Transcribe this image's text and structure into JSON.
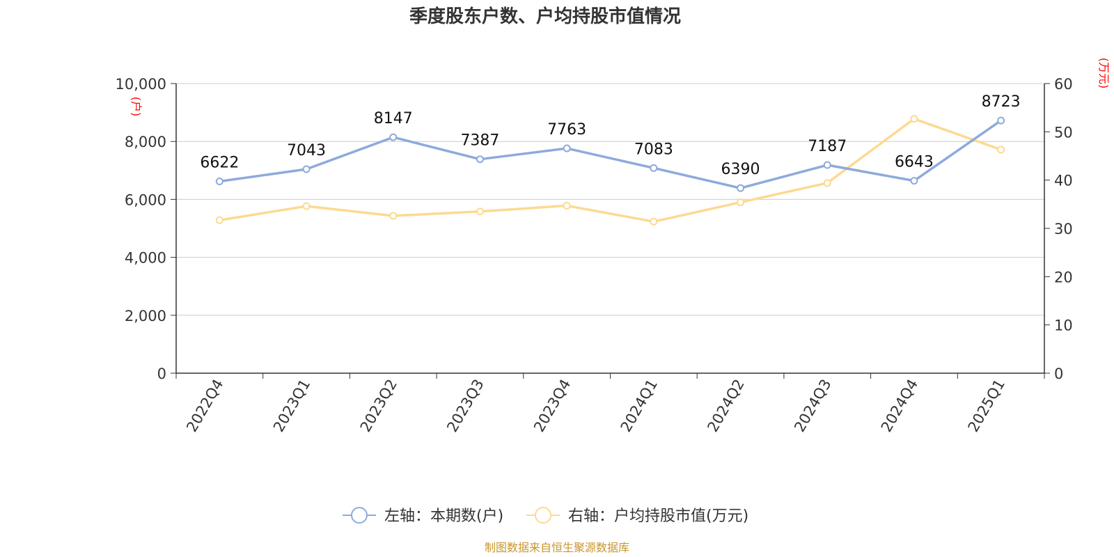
{
  "chart_data": {
    "type": "line",
    "title": "季度股东户数、户均持股市值情况",
    "categories": [
      "2022Q4",
      "2023Q1",
      "2023Q2",
      "2023Q3",
      "2023Q4",
      "2024Q1",
      "2024Q2",
      "2024Q3",
      "2024Q4",
      "2025Q1"
    ],
    "series": [
      {
        "name": "左轴：本期数(户)",
        "axis": "left",
        "color": "#8eaadb",
        "values": [
          6622,
          7043,
          8147,
          7387,
          7763,
          7083,
          6390,
          7187,
          6643,
          8723
        ],
        "data_labels": [
          "6622",
          "7043",
          "8147",
          "7387",
          "7763",
          "7083",
          "6390",
          "7187",
          "6643",
          "8723"
        ]
      },
      {
        "name": "右轴：户均持股市值(万元)",
        "axis": "right",
        "color": "#fdd991",
        "values": [
          31.7,
          34.6,
          32.6,
          33.5,
          34.7,
          31.4,
          35.4,
          39.4,
          52.7,
          46.3
        ]
      }
    ],
    "y_left": {
      "unit": "(户)",
      "range": [
        0,
        10000
      ],
      "ticks": [
        0,
        2000,
        4000,
        6000,
        8000,
        10000
      ],
      "tick_labels": [
        "0",
        "2,000",
        "4,000",
        "6,000",
        "8,000",
        "10,000"
      ]
    },
    "y_right": {
      "unit": "(万元)",
      "range": [
        0,
        60
      ],
      "ticks": [
        0,
        10,
        20,
        30,
        40,
        50,
        60
      ],
      "tick_labels": [
        "0",
        "10",
        "20",
        "30",
        "40",
        "50",
        "60"
      ]
    },
    "grid": true,
    "legend_position": "bottom"
  },
  "source": "制图数据来自恒生聚源数据库",
  "colors": {
    "axis": "#333333",
    "grid": "#cccccc",
    "unit_label": "#ff0000",
    "source": "#c8962d"
  }
}
